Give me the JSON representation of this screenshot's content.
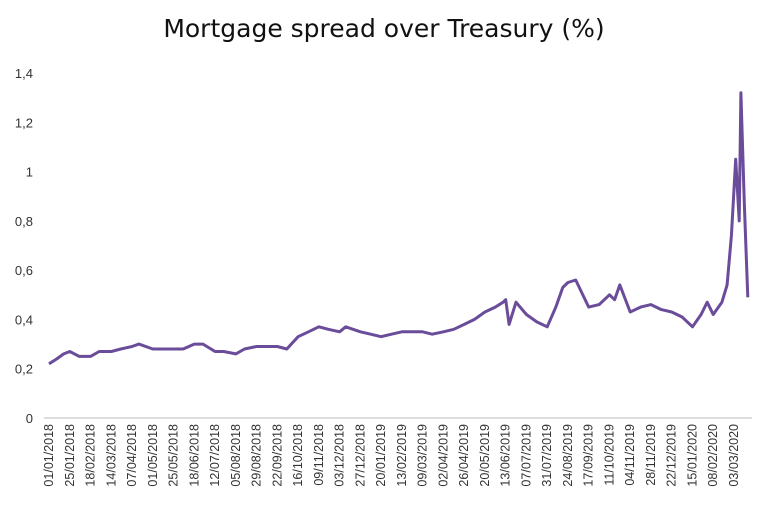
{
  "chart_data": {
    "type": "line",
    "title": "Mortgage spread over Treasury (%)",
    "xlabel": "",
    "ylabel": "",
    "ylim": [
      0,
      1.4
    ],
    "yticks": [
      "0",
      "0,2",
      "0,4",
      "0,6",
      "0,8",
      "1",
      "1,2",
      "1,4"
    ],
    "xticks": [
      "01/01/2018",
      "25/01/2018",
      "18/02/2018",
      "14/03/2018",
      "07/04/2018",
      "01/05/2018",
      "25/05/2018",
      "18/06/2018",
      "12/07/2018",
      "05/08/2018",
      "29/08/2018",
      "22/09/2018",
      "16/10/2018",
      "09/11/2018",
      "03/12/2018",
      "27/12/2018",
      "20/01/2019",
      "13/02/2019",
      "09/03/2019",
      "02/04/2019",
      "26/04/2019",
      "20/05/2019",
      "13/06/2019",
      "07/07/2019",
      "31/07/2019",
      "24/08/2019",
      "17/09/2019",
      "11/10/2019",
      "04/11/2019",
      "28/11/2019",
      "22/12/2019",
      "15/01/2020",
      "08/02/2020",
      "03/03/2020"
    ],
    "grid": false,
    "line_color": "#6b4c9a",
    "series": [
      {
        "x": [
          "01/01/2018",
          "10/01/2018",
          "18/01/2018",
          "25/01/2018",
          "05/02/2018",
          "18/02/2018",
          "28/02/2018",
          "14/03/2018",
          "25/03/2018",
          "07/04/2018",
          "15/04/2018",
          "01/05/2018",
          "12/05/2018",
          "25/05/2018",
          "05/06/2018",
          "18/06/2018",
          "28/06/2018",
          "12/07/2018",
          "22/07/2018",
          "05/08/2018",
          "15/08/2018",
          "29/08/2018",
          "10/09/2018",
          "22/09/2018",
          "03/10/2018",
          "16/10/2018",
          "28/10/2018",
          "09/11/2018",
          "20/11/2018",
          "03/12/2018",
          "10/12/2018",
          "27/12/2018",
          "08/01/2019",
          "20/01/2019",
          "01/02/2019",
          "13/02/2019",
          "25/02/2019",
          "09/03/2019",
          "20/03/2019",
          "02/04/2019",
          "14/04/2019",
          "26/04/2019",
          "08/05/2019",
          "20/05/2019",
          "01/06/2019",
          "10/06/2019",
          "13/06/2019",
          "17/06/2019",
          "25/06/2019",
          "07/07/2019",
          "19/07/2019",
          "31/07/2019",
          "10/08/2019",
          "18/08/2019",
          "24/08/2019",
          "02/09/2019",
          "17/09/2019",
          "29/09/2019",
          "11/10/2019",
          "17/10/2019",
          "23/10/2019",
          "04/11/2019",
          "16/11/2019",
          "28/11/2019",
          "10/12/2019",
          "22/12/2019",
          "03/01/2020",
          "15/01/2020",
          "25/01/2020",
          "01/02/2020",
          "08/02/2020",
          "18/02/2020",
          "24/02/2020",
          "29/02/2020",
          "05/03/2020",
          "09/03/2020",
          "11/03/2020",
          "15/03/2020",
          "19/03/2020"
        ],
        "values": [
          0.22,
          0.24,
          0.26,
          0.27,
          0.25,
          0.25,
          0.27,
          0.27,
          0.28,
          0.29,
          0.3,
          0.28,
          0.28,
          0.28,
          0.28,
          0.3,
          0.3,
          0.27,
          0.27,
          0.26,
          0.28,
          0.29,
          0.29,
          0.29,
          0.28,
          0.33,
          0.35,
          0.37,
          0.36,
          0.35,
          0.37,
          0.35,
          0.34,
          0.33,
          0.34,
          0.35,
          0.35,
          0.35,
          0.34,
          0.35,
          0.36,
          0.38,
          0.4,
          0.43,
          0.45,
          0.47,
          0.48,
          0.38,
          0.47,
          0.42,
          0.39,
          0.37,
          0.45,
          0.53,
          0.55,
          0.56,
          0.45,
          0.46,
          0.5,
          0.48,
          0.54,
          0.43,
          0.45,
          0.46,
          0.44,
          0.43,
          0.41,
          0.37,
          0.42,
          0.47,
          0.42,
          0.47,
          0.54,
          0.74,
          1.05,
          0.8,
          1.32,
          0.86,
          0.49
        ]
      }
    ]
  }
}
